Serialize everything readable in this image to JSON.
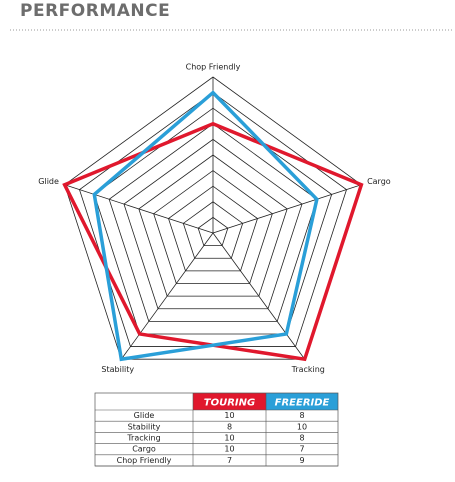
{
  "chart_data": {
    "type": "radar",
    "title": "PERFORMANCE",
    "categories": [
      "Glide",
      "Stability",
      "Tracking",
      "Cargo",
      "Chop Friendly"
    ],
    "series": [
      {
        "name": "TOURING",
        "color": "#e0182d",
        "values": [
          10,
          8,
          10,
          10,
          7
        ]
      },
      {
        "name": "FREERIDE",
        "color": "#2a9fd8",
        "values": [
          8,
          10,
          8,
          7,
          9
        ]
      }
    ],
    "rlim": [
      0,
      10
    ],
    "rticks": [
      1,
      2,
      3,
      4,
      5,
      6,
      7,
      8,
      9,
      10
    ],
    "grid": true
  }
}
